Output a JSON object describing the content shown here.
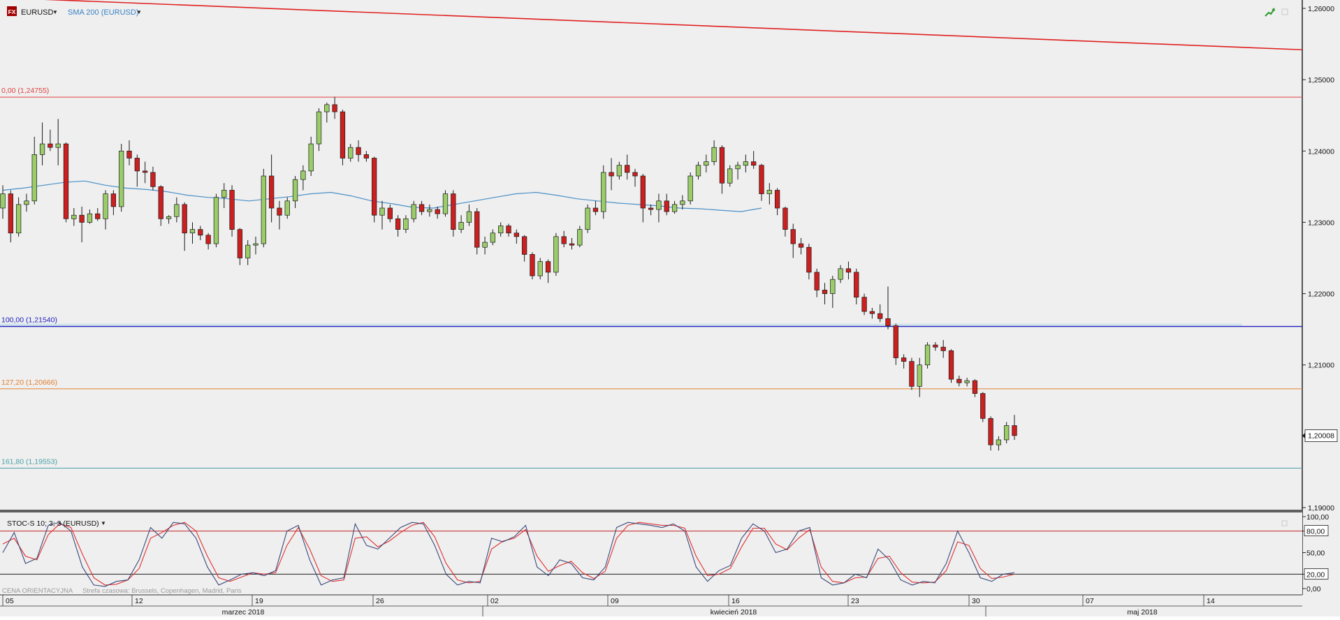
{
  "header": {
    "symbol": "EURUSD",
    "indicator": "SMA 200 (EURUSD)",
    "fx_badge": "FX"
  },
  "stoch_header": "STOC-S 10; 3; 3 (EURUSD)",
  "footer_note": {
    "left": "CENA ORIENTACYJNA",
    "right": "Strefa czasowa: Brussels, Copenhagen, Madrid, Paris"
  },
  "colors": {
    "background": "#efefef",
    "up_candle": "#9bcc6a",
    "down_candle": "#cc1f1f",
    "sma": "#4a90c8",
    "trend_line": "#e02020",
    "fib_0": "#e04040",
    "fib_100": "#2020c0",
    "fib_127": "#e08030",
    "fib_161": "#4aa0a8",
    "stoch_k": "#3a4a7a",
    "stoch_d": "#e03030"
  },
  "icons": [
    "fx-icon",
    "dropdown-arrow-icon",
    "chart-line-icon",
    "window-restore-icon"
  ],
  "price_labels": {
    "fib_0": "0,00 (1,24755)",
    "fib_100": "100,00 (1,21540)",
    "fib_127": "127,20 (1,20666)",
    "fib_161": "161,80 (1,19553)",
    "last_price": "1,20008"
  },
  "chart_data": [
    {
      "type": "candlestick",
      "ylim": [
        1.19,
        1.26
      ],
      "y_ticks": [
        "1,26000",
        "1,25000",
        "1,24000",
        "1,23000",
        "1,22000",
        "1,21000",
        "1,20000",
        "1,19000"
      ],
      "x_axis": {
        "days": [
          "05",
          "12",
          "19",
          "26",
          "02",
          "09",
          "16",
          "23",
          "30",
          "07",
          "14"
        ],
        "months": [
          "marzec 2018",
          "kwiecień 2018",
          "maj 2018"
        ]
      },
      "fibonacci_levels": [
        {
          "level": "0,00",
          "price": 1.24755
        },
        {
          "level": "100,00",
          "price": 1.2154
        },
        {
          "level": "127,20",
          "price": 1.20666
        },
        {
          "level": "161,80",
          "price": 1.19553
        }
      ],
      "trend_line": {
        "from": 1.2615,
        "to": 1.2542
      },
      "last_price": 1.20008,
      "daily": [
        {
          "o": 1.232,
          "h": 1.2352,
          "l": 1.2305,
          "c": 1.234
        },
        {
          "o": 1.234,
          "h": 1.2345,
          "l": 1.2272,
          "c": 1.2285
        },
        {
          "o": 1.2285,
          "h": 1.2335,
          "l": 1.228,
          "c": 1.2325
        },
        {
          "o": 1.2325,
          "h": 1.234,
          "l": 1.2315,
          "c": 1.233
        },
        {
          "o": 1.233,
          "h": 1.242,
          "l": 1.2325,
          "c": 1.2395
        },
        {
          "o": 1.2395,
          "h": 1.244,
          "l": 1.238,
          "c": 1.241
        },
        {
          "o": 1.241,
          "h": 1.243,
          "l": 1.24,
          "c": 1.2405
        },
        {
          "o": 1.2405,
          "h": 1.2445,
          "l": 1.238,
          "c": 1.241
        },
        {
          "o": 1.241,
          "h": 1.2412,
          "l": 1.23,
          "c": 1.2305
        },
        {
          "o": 1.2305,
          "h": 1.232,
          "l": 1.2295,
          "c": 1.231
        },
        {
          "o": 1.231,
          "h": 1.2322,
          "l": 1.2272,
          "c": 1.23
        },
        {
          "o": 1.23,
          "h": 1.2318,
          "l": 1.2298,
          "c": 1.2312
        },
        {
          "o": 1.2312,
          "h": 1.232,
          "l": 1.2302,
          "c": 1.2305
        },
        {
          "o": 1.2305,
          "h": 1.2345,
          "l": 1.229,
          "c": 1.234
        },
        {
          "o": 1.234,
          "h": 1.2345,
          "l": 1.231,
          "c": 1.2322
        },
        {
          "o": 1.2322,
          "h": 1.241,
          "l": 1.2315,
          "c": 1.24
        },
        {
          "o": 1.24,
          "h": 1.2415,
          "l": 1.238,
          "c": 1.239
        },
        {
          "o": 1.239,
          "h": 1.2395,
          "l": 1.235,
          "c": 1.2372
        },
        {
          "o": 1.2372,
          "h": 1.2385,
          "l": 1.2355,
          "c": 1.237
        },
        {
          "o": 1.237,
          "h": 1.2378,
          "l": 1.2345,
          "c": 1.235
        },
        {
          "o": 1.235,
          "h": 1.2352,
          "l": 1.2295,
          "c": 1.2305
        },
        {
          "o": 1.2305,
          "h": 1.231,
          "l": 1.2298,
          "c": 1.2308
        },
        {
          "o": 1.2308,
          "h": 1.2335,
          "l": 1.23,
          "c": 1.2325
        },
        {
          "o": 1.2325,
          "h": 1.2328,
          "l": 1.226,
          "c": 1.2285
        },
        {
          "o": 1.2285,
          "h": 1.23,
          "l": 1.227,
          "c": 1.229
        },
        {
          "o": 1.229,
          "h": 1.2295,
          "l": 1.2275,
          "c": 1.2282
        },
        {
          "o": 1.2282,
          "h": 1.2285,
          "l": 1.2262,
          "c": 1.227
        },
        {
          "o": 1.227,
          "h": 1.234,
          "l": 1.2265,
          "c": 1.2335
        },
        {
          "o": 1.2335,
          "h": 1.2355,
          "l": 1.232,
          "c": 1.2345
        },
        {
          "o": 1.2345,
          "h": 1.2352,
          "l": 1.228,
          "c": 1.229
        },
        {
          "o": 1.229,
          "h": 1.2292,
          "l": 1.224,
          "c": 1.225
        },
        {
          "o": 1.225,
          "h": 1.2275,
          "l": 1.224,
          "c": 1.2268
        },
        {
          "o": 1.2268,
          "h": 1.228,
          "l": 1.2255,
          "c": 1.227
        },
        {
          "o": 1.227,
          "h": 1.2375,
          "l": 1.2265,
          "c": 1.2365
        },
        {
          "o": 1.2365,
          "h": 1.2395,
          "l": 1.23,
          "c": 1.232
        },
        {
          "o": 1.232,
          "h": 1.233,
          "l": 1.229,
          "c": 1.231
        },
        {
          "o": 1.231,
          "h": 1.2335,
          "l": 1.2305,
          "c": 1.233
        },
        {
          "o": 1.233,
          "h": 1.2365,
          "l": 1.232,
          "c": 1.236
        },
        {
          "o": 1.236,
          "h": 1.238,
          "l": 1.2345,
          "c": 1.2372
        },
        {
          "o": 1.2372,
          "h": 1.242,
          "l": 1.2365,
          "c": 1.241
        },
        {
          "o": 1.241,
          "h": 1.246,
          "l": 1.24,
          "c": 1.2455
        },
        {
          "o": 1.2455,
          "h": 1.2468,
          "l": 1.244,
          "c": 1.2465
        },
        {
          "o": 1.2465,
          "h": 1.2476,
          "l": 1.2445,
          "c": 1.2455
        },
        {
          "o": 1.2455,
          "h": 1.2458,
          "l": 1.238,
          "c": 1.239
        },
        {
          "o": 1.239,
          "h": 1.241,
          "l": 1.2385,
          "c": 1.2405
        },
        {
          "o": 1.2405,
          "h": 1.2415,
          "l": 1.2385,
          "c": 1.2395
        },
        {
          "o": 1.2395,
          "h": 1.24,
          "l": 1.2385,
          "c": 1.239
        },
        {
          "o": 1.239,
          "h": 1.2392,
          "l": 1.23,
          "c": 1.231
        },
        {
          "o": 1.231,
          "h": 1.233,
          "l": 1.229,
          "c": 1.232
        },
        {
          "o": 1.232,
          "h": 1.2325,
          "l": 1.23,
          "c": 1.2305
        },
        {
          "o": 1.2305,
          "h": 1.231,
          "l": 1.228,
          "c": 1.229
        },
        {
          "o": 1.229,
          "h": 1.231,
          "l": 1.2285,
          "c": 1.2305
        },
        {
          "o": 1.2305,
          "h": 1.233,
          "l": 1.23,
          "c": 1.2325
        },
        {
          "o": 1.2325,
          "h": 1.233,
          "l": 1.231,
          "c": 1.2315
        },
        {
          "o": 1.2315,
          "h": 1.2325,
          "l": 1.2308,
          "c": 1.2318
        },
        {
          "o": 1.2318,
          "h": 1.2322,
          "l": 1.2305,
          "c": 1.2312
        },
        {
          "o": 1.2312,
          "h": 1.2345,
          "l": 1.2308,
          "c": 1.234
        },
        {
          "o": 1.234,
          "h": 1.2345,
          "l": 1.228,
          "c": 1.229
        },
        {
          "o": 1.229,
          "h": 1.231,
          "l": 1.2285,
          "c": 1.23
        },
        {
          "o": 1.23,
          "h": 1.2325,
          "l": 1.2295,
          "c": 1.2315
        },
        {
          "o": 1.2315,
          "h": 1.232,
          "l": 1.2255,
          "c": 1.2265
        },
        {
          "o": 1.2265,
          "h": 1.228,
          "l": 1.2255,
          "c": 1.2272
        },
        {
          "o": 1.2272,
          "h": 1.229,
          "l": 1.2268,
          "c": 1.2285
        },
        {
          "o": 1.2285,
          "h": 1.23,
          "l": 1.228,
          "c": 1.2295
        },
        {
          "o": 1.2295,
          "h": 1.2298,
          "l": 1.228,
          "c": 1.2285
        },
        {
          "o": 1.2285,
          "h": 1.229,
          "l": 1.227,
          "c": 1.228
        },
        {
          "o": 1.228,
          "h": 1.2282,
          "l": 1.2245,
          "c": 1.2255
        },
        {
          "o": 1.2255,
          "h": 1.2258,
          "l": 1.222,
          "c": 1.2225
        },
        {
          "o": 1.2225,
          "h": 1.225,
          "l": 1.222,
          "c": 1.2245
        },
        {
          "o": 1.2245,
          "h": 1.2248,
          "l": 1.2215,
          "c": 1.223
        },
        {
          "o": 1.223,
          "h": 1.2285,
          "l": 1.2225,
          "c": 1.228
        },
        {
          "o": 1.228,
          "h": 1.2288,
          "l": 1.2265,
          "c": 1.227
        },
        {
          "o": 1.227,
          "h": 1.2278,
          "l": 1.2262,
          "c": 1.2268
        },
        {
          "o": 1.2268,
          "h": 1.2295,
          "l": 1.2265,
          "c": 1.229
        },
        {
          "o": 1.229,
          "h": 1.2325,
          "l": 1.2285,
          "c": 1.232
        },
        {
          "o": 1.232,
          "h": 1.233,
          "l": 1.231,
          "c": 1.2315
        },
        {
          "o": 1.2315,
          "h": 1.238,
          "l": 1.2305,
          "c": 1.237
        },
        {
          "o": 1.237,
          "h": 1.239,
          "l": 1.2345,
          "c": 1.2365
        },
        {
          "o": 1.2365,
          "h": 1.2385,
          "l": 1.236,
          "c": 1.238
        },
        {
          "o": 1.238,
          "h": 1.2395,
          "l": 1.236,
          "c": 1.237
        },
        {
          "o": 1.237,
          "h": 1.2375,
          "l": 1.235,
          "c": 1.2365
        },
        {
          "o": 1.2365,
          "h": 1.2368,
          "l": 1.23,
          "c": 1.232
        },
        {
          "o": 1.232,
          "h": 1.2325,
          "l": 1.231,
          "c": 1.2318
        },
        {
          "o": 1.2318,
          "h": 1.234,
          "l": 1.23,
          "c": 1.233
        },
        {
          "o": 1.233,
          "h": 1.234,
          "l": 1.231,
          "c": 1.2315
        },
        {
          "o": 1.2315,
          "h": 1.233,
          "l": 1.2312,
          "c": 1.2325
        },
        {
          "o": 1.2325,
          "h": 1.2338,
          "l": 1.2318,
          "c": 1.233
        },
        {
          "o": 1.233,
          "h": 1.237,
          "l": 1.2325,
          "c": 1.2365
        },
        {
          "o": 1.2365,
          "h": 1.2385,
          "l": 1.236,
          "c": 1.238
        },
        {
          "o": 1.238,
          "h": 1.2395,
          "l": 1.237,
          "c": 1.2385
        },
        {
          "o": 1.2385,
          "h": 1.2415,
          "l": 1.238,
          "c": 1.2405
        },
        {
          "o": 1.2405,
          "h": 1.2408,
          "l": 1.234,
          "c": 1.2355
        },
        {
          "o": 1.2355,
          "h": 1.238,
          "l": 1.235,
          "c": 1.2375
        },
        {
          "o": 1.2375,
          "h": 1.2385,
          "l": 1.236,
          "c": 1.238
        },
        {
          "o": 1.238,
          "h": 1.2395,
          "l": 1.237,
          "c": 1.2385
        },
        {
          "o": 1.2385,
          "h": 1.24,
          "l": 1.2375,
          "c": 1.238
        },
        {
          "o": 1.238,
          "h": 1.2382,
          "l": 1.233,
          "c": 1.234
        },
        {
          "o": 1.234,
          "h": 1.2355,
          "l": 1.2325,
          "c": 1.2345
        },
        {
          "o": 1.2345,
          "h": 1.2348,
          "l": 1.231,
          "c": 1.232
        },
        {
          "o": 1.232,
          "h": 1.2322,
          "l": 1.228,
          "c": 1.229
        },
        {
          "o": 1.229,
          "h": 1.2298,
          "l": 1.225,
          "c": 1.227
        },
        {
          "o": 1.227,
          "h": 1.2278,
          "l": 1.2255,
          "c": 1.2265
        },
        {
          "o": 1.2265,
          "h": 1.227,
          "l": 1.222,
          "c": 1.223
        },
        {
          "o": 1.223,
          "h": 1.2235,
          "l": 1.2195,
          "c": 1.2205
        },
        {
          "o": 1.2205,
          "h": 1.2215,
          "l": 1.2185,
          "c": 1.22
        },
        {
          "o": 1.22,
          "h": 1.2225,
          "l": 1.218,
          "c": 1.222
        },
        {
          "o": 1.222,
          "h": 1.224,
          "l": 1.2215,
          "c": 1.2235
        },
        {
          "o": 1.2235,
          "h": 1.2245,
          "l": 1.222,
          "c": 1.223
        },
        {
          "o": 1.223,
          "h": 1.2235,
          "l": 1.2185,
          "c": 1.2195
        },
        {
          "o": 1.2195,
          "h": 1.22,
          "l": 1.217,
          "c": 1.2175
        },
        {
          "o": 1.2175,
          "h": 1.218,
          "l": 1.2165,
          "c": 1.2172
        },
        {
          "o": 1.2172,
          "h": 1.2185,
          "l": 1.216,
          "c": 1.2165
        },
        {
          "o": 1.2165,
          "h": 1.221,
          "l": 1.215,
          "c": 1.2155
        },
        {
          "o": 1.2155,
          "h": 1.2158,
          "l": 1.21,
          "c": 1.211
        },
        {
          "o": 1.211,
          "h": 1.2115,
          "l": 1.2095,
          "c": 1.2105
        },
        {
          "o": 1.2105,
          "h": 1.211,
          "l": 1.2065,
          "c": 1.207
        },
        {
          "o": 1.207,
          "h": 1.211,
          "l": 1.2055,
          "c": 1.21
        },
        {
          "o": 1.21,
          "h": 1.2132,
          "l": 1.2095,
          "c": 1.2128
        },
        {
          "o": 1.2128,
          "h": 1.2132,
          "l": 1.212,
          "c": 1.2125
        },
        {
          "o": 1.2125,
          "h": 1.2135,
          "l": 1.211,
          "c": 1.212
        },
        {
          "o": 1.212,
          "h": 1.2122,
          "l": 1.2075,
          "c": 1.208
        },
        {
          "o": 1.208,
          "h": 1.2085,
          "l": 1.207,
          "c": 1.2075
        },
        {
          "o": 1.2075,
          "h": 1.2082,
          "l": 1.207,
          "c": 1.2078
        },
        {
          "o": 1.2078,
          "h": 1.208,
          "l": 1.2055,
          "c": 1.206
        },
        {
          "o": 1.206,
          "h": 1.2062,
          "l": 1.202,
          "c": 1.2025
        },
        {
          "o": 1.2025,
          "h": 1.2028,
          "l": 1.198,
          "c": 1.1988
        },
        {
          "o": 1.1988,
          "h": 1.2,
          "l": 1.198,
          "c": 1.1995
        },
        {
          "o": 1.1995,
          "h": 1.202,
          "l": 1.199,
          "c": 1.2015
        },
        {
          "o": 1.2015,
          "h": 1.203,
          "l": 1.1995,
          "c": 1.2001
        }
      ],
      "sma200": [
        1.2345,
        1.2348,
        1.2352,
        1.2356,
        1.2358,
        1.2352,
        1.2348,
        1.2346,
        1.2343,
        1.2338,
        1.2335,
        1.2333,
        1.233,
        1.2333,
        1.2336,
        1.234,
        1.2342,
        1.2337,
        1.233,
        1.2326,
        1.2321,
        1.232,
        1.2325,
        1.233,
        1.2335,
        1.234,
        1.2342,
        1.2338,
        1.2333,
        1.233,
        1.2327,
        1.2325,
        1.2323,
        1.232,
        1.2319,
        1.2317,
        1.2315,
        1.232
      ],
      "sma200_days": 96
    },
    {
      "type": "line",
      "name": "stochastic",
      "ylim": [
        0,
        100
      ],
      "y_ticks": [
        "100,00",
        "80,00",
        "50,00",
        "20,00",
        "0,00"
      ],
      "levels": [
        80,
        20
      ],
      "k": [
        50,
        78,
        35,
        42,
        88,
        92,
        80,
        30,
        5,
        3,
        10,
        12,
        40,
        85,
        70,
        92,
        90,
        70,
        30,
        5,
        12,
        20,
        22,
        18,
        25,
        80,
        88,
        40,
        5,
        12,
        15,
        90,
        60,
        55,
        70,
        85,
        92,
        90,
        60,
        20,
        5,
        10,
        8,
        70,
        65,
        72,
        88,
        30,
        18,
        40,
        35,
        15,
        12,
        30,
        85,
        92,
        90,
        88,
        85,
        90,
        80,
        30,
        10,
        25,
        32,
        70,
        90,
        80,
        50,
        55,
        80,
        85,
        15,
        5,
        8,
        20,
        15,
        55,
        40,
        12,
        5,
        10,
        8,
        35,
        80,
        50,
        15,
        10,
        20,
        22
      ],
      "d": [
        62,
        70,
        45,
        40,
        75,
        90,
        85,
        48,
        15,
        5,
        6,
        12,
        28,
        70,
        78,
        88,
        92,
        80,
        45,
        15,
        10,
        16,
        22,
        20,
        22,
        60,
        85,
        55,
        18,
        10,
        12,
        70,
        72,
        58,
        66,
        78,
        88,
        92,
        72,
        35,
        12,
        8,
        10,
        55,
        66,
        70,
        82,
        45,
        24,
        32,
        38,
        22,
        14,
        24,
        70,
        88,
        92,
        90,
        88,
        88,
        84,
        45,
        18,
        20,
        28,
        58,
        84,
        84,
        62,
        54,
        70,
        82,
        30,
        10,
        8,
        15,
        16,
        42,
        45,
        22,
        9,
        8,
        9,
        25,
        65,
        60,
        28,
        14,
        16,
        20
      ]
    }
  ]
}
